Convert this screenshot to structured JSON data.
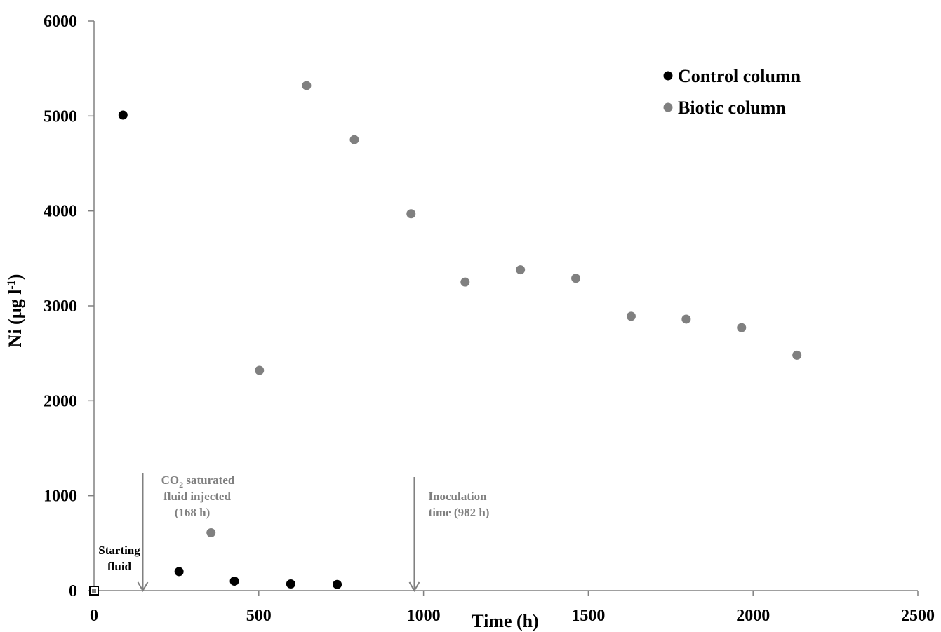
{
  "chart_data": {
    "type": "scatter",
    "xlabel": "Time (h)",
    "ylabel_main": "Ni (µg l",
    "ylabel_sup": "-1",
    "ylabel_close": ")",
    "xlim": [
      0,
      2500
    ],
    "ylim": [
      0,
      6000
    ],
    "x_ticks": [
      0,
      500,
      1000,
      1500,
      2000,
      2500
    ],
    "y_ticks": [
      0,
      1000,
      2000,
      3000,
      4000,
      5000,
      6000
    ],
    "grid": false,
    "legend_position": "top-right",
    "series": [
      {
        "name": "Control column",
        "color": "#000000",
        "points": [
          {
            "x": 88,
            "y": 5010
          },
          {
            "x": 258,
            "y": 200
          },
          {
            "x": 426,
            "y": 100
          },
          {
            "x": 597,
            "y": 70
          },
          {
            "x": 738,
            "y": 65
          }
        ]
      },
      {
        "name": "Biotic column",
        "color": "#808080",
        "points": [
          {
            "x": 355,
            "y": 610
          },
          {
            "x": 502,
            "y": 2320
          },
          {
            "x": 645,
            "y": 5320
          },
          {
            "x": 790,
            "y": 4750
          },
          {
            "x": 962,
            "y": 3970
          },
          {
            "x": 1126,
            "y": 3250
          },
          {
            "x": 1294,
            "y": 3380
          },
          {
            "x": 1462,
            "y": 3290
          },
          {
            "x": 1630,
            "y": 2890
          },
          {
            "x": 1797,
            "y": 2860
          },
          {
            "x": 1965,
            "y": 2770
          },
          {
            "x": 2133,
            "y": 2480
          }
        ]
      }
    ],
    "starting_point": {
      "x": 0,
      "y": 0
    },
    "annotations": {
      "starting_fluid": [
        "Starting",
        "fluid"
      ],
      "co2": {
        "x": 168,
        "line1_pre": "CO",
        "line1_sub": "2",
        "line1_post": " saturated",
        "line2": "fluid injected",
        "line3": "(168 h)"
      },
      "inoculation": {
        "x": 982,
        "line1": "Inoculation",
        "line2": "time (982 h)"
      }
    }
  }
}
